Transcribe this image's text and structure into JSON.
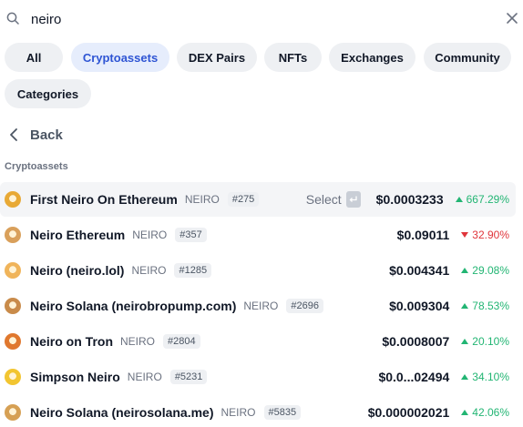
{
  "search": {
    "value": "neiro"
  },
  "filters": [
    {
      "label": "All",
      "active": false
    },
    {
      "label": "Cryptoassets",
      "active": true
    },
    {
      "label": "DEX Pairs",
      "active": false
    },
    {
      "label": "NFTs",
      "active": false
    },
    {
      "label": "Exchanges",
      "active": false
    },
    {
      "label": "Community",
      "active": false
    },
    {
      "label": "Categories",
      "active": false
    }
  ],
  "back_label": "Back",
  "section_label": "Cryptoassets",
  "select_label": "Select",
  "colors": {
    "accent": "#2f55d4",
    "up": "#22b573",
    "down": "#e0353b"
  },
  "results": [
    {
      "name": "First Neiro On Ethereum",
      "symbol": "NEIRO",
      "rank": "#275",
      "price": "$0.0003233",
      "change": "667.29%",
      "direction": "up",
      "icon": "first-neiro-coin-icon",
      "color": "#e8a935"
    },
    {
      "name": "Neiro Ethereum",
      "symbol": "NEIRO",
      "rank": "#357",
      "price": "$0.09011",
      "change": "32.90%",
      "direction": "down",
      "icon": "neiro-ethereum-coin-icon",
      "color": "#d9a05b"
    },
    {
      "name": "Neiro (neiro.lol)",
      "symbol": "NEIRO",
      "rank": "#1285",
      "price": "$0.004341",
      "change": "29.08%",
      "direction": "up",
      "icon": "neiro-lol-coin-icon",
      "color": "#f0b45a"
    },
    {
      "name": "Neiro Solana (neirobropump.com)",
      "symbol": "NEIRO",
      "rank": "#2696",
      "price": "$0.009304",
      "change": "78.53%",
      "direction": "up",
      "icon": "neiro-solana-coin-icon",
      "color": "#c98b4a"
    },
    {
      "name": "Neiro on Tron",
      "symbol": "NEIRO",
      "rank": "#2804",
      "price": "$0.0008007",
      "change": "20.10%",
      "direction": "up",
      "icon": "neiro-tron-coin-icon",
      "color": "#e0782e"
    },
    {
      "name": "Simpson Neiro",
      "symbol": "NEIRO",
      "rank": "#5231",
      "price": "$0.0...02494",
      "change": "34.10%",
      "direction": "up",
      "icon": "simpson-neiro-coin-icon",
      "color": "#f2c531"
    },
    {
      "name": "Neiro Solana (neirosolana.me)",
      "symbol": "NEIRO",
      "rank": "#5835",
      "price": "$0.000002021",
      "change": "42.06%",
      "direction": "up",
      "icon": "neiro-solana-me-coin-icon",
      "color": "#d6a054"
    }
  ]
}
